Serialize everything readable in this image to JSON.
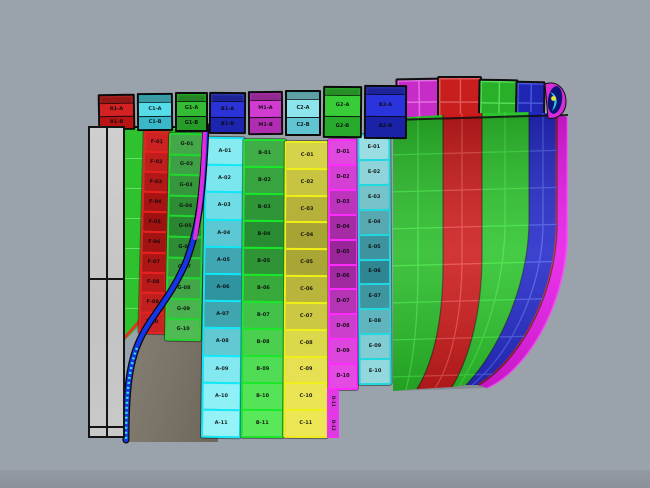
{
  "viewport": {
    "background": "#9aa2ab",
    "ground_shadow": "#8b9199"
  },
  "flat_panel": {
    "fill": "#cbcbcb",
    "border": "#141414"
  },
  "bow_panel": {
    "fill": "#2ec22e",
    "grid_line": "#96ff96",
    "edge_line": "#e03424"
  },
  "shadow_surface": {
    "fill": "#7a7367"
  },
  "stem_curve": {
    "outline": "#0a0a0a",
    "blue": "#1535e8",
    "magenta": "#e22ae2",
    "speckle": "#28e8e8"
  },
  "top_front_boxes": [
    {
      "id": "fb1",
      "color_name": "red",
      "frame": "#f03030",
      "cells": [
        "#d42222",
        "#b81414"
      ],
      "labels": [
        "R1-A",
        "R1-B"
      ]
    },
    {
      "id": "fb2",
      "color_name": "cyan",
      "frame": "#40e8f8",
      "cells": [
        "#55dce8",
        "#38b8c8"
      ],
      "labels": [
        "C1-A",
        "C1-B"
      ]
    },
    {
      "id": "fb3",
      "color_name": "green",
      "frame": "#30e830",
      "cells": [
        "#34bc34",
        "#259c28"
      ],
      "labels": [
        "G1-A",
        "G1-B"
      ]
    },
    {
      "id": "fb4",
      "color_name": "blue",
      "frame": "#4050f0",
      "cells": [
        "#2a32d8",
        "#1c24b0"
      ],
      "labels": [
        "B1-A",
        "B1-B"
      ]
    },
    {
      "id": "fb5",
      "color_name": "magenta",
      "frame": "#f040f0",
      "cells": [
        "#d03cd0",
        "#b02cb0"
      ],
      "labels": [
        "M1-A",
        "M1-B"
      ]
    },
    {
      "id": "fb6",
      "color_name": "pale-cyan",
      "frame": "#70e8f0",
      "cells": [
        "#8ce4ec",
        "#60c4d2"
      ],
      "labels": [
        "C2-A",
        "C2-B"
      ]
    },
    {
      "id": "fb7",
      "color_name": "green",
      "frame": "#38e838",
      "cells": [
        "#38cc38",
        "#28aa2c"
      ],
      "labels": [
        "G2-A",
        "G2-B"
      ]
    },
    {
      "id": "fb8",
      "color_name": "blue",
      "frame": "#3848e8",
      "cells": [
        "#2a34dc",
        "#1a22a8"
      ],
      "labels": [
        "B2-A",
        "B2-B"
      ]
    }
  ],
  "top_back_panels": [
    {
      "id": "bp1",
      "color_name": "magenta",
      "color": "#c82cc8",
      "grid_line": "#e070e0"
    },
    {
      "id": "bp2",
      "color_name": "red",
      "color": "#c81e1e",
      "grid_line": "#e05858"
    },
    {
      "id": "bp3",
      "color_name": "green",
      "color": "#28b028",
      "grid_line": "#58dc58"
    },
    {
      "id": "bp4",
      "color_name": "blue",
      "color": "#2026b4",
      "grid_line": "#4858dc"
    }
  ],
  "edge_detail": {
    "backing": "#d82cd8",
    "body": "#0c1478",
    "swoosh": "#28d0e0",
    "dot": "#f0e428"
  },
  "plate_columns": [
    {
      "id": "red",
      "border": "#e82020",
      "shades": [
        "#cc2222",
        "#c01d1d",
        "#b31818",
        "#a81414",
        "#a01212",
        "#a41313",
        "#ae1616",
        "#b81a1a",
        "#c21f1f",
        "#c92222"
      ],
      "labels": [
        "F-01",
        "F-02",
        "F-03",
        "F-04",
        "F-05",
        "F-06",
        "F-07",
        "F-08",
        "F-09",
        "F-10"
      ]
    },
    {
      "id": "green1",
      "border": "#20d830",
      "shades": [
        "#44a84a",
        "#3da044",
        "#35963c",
        "#2e8c34",
        "#2a8630",
        "#2e8c34",
        "#38983e",
        "#42a648",
        "#4ab24e",
        "#50ba54"
      ],
      "labels": [
        "G-01",
        "G-02",
        "G-03",
        "G-04",
        "G-05",
        "G-06",
        "G-07",
        "G-08",
        "G-09",
        "G-10"
      ]
    },
    {
      "id": "cyan",
      "border": "#10e8f8",
      "shades": [
        "#86ecf2",
        "#7ce6ee",
        "#6fdce6",
        "#5cc8d4",
        "#3fa6b2",
        "#2f93a0",
        "#3fa6b0",
        "#62c8d2",
        "#83e8f0",
        "#8ff0f5",
        "#95f2f6"
      ],
      "labels": [
        "A-01",
        "A-02",
        "A-03",
        "A-04",
        "A-05",
        "A-06",
        "A-07",
        "A-08",
        "A-09",
        "A-10",
        "A-11"
      ]
    },
    {
      "id": "green2",
      "border": "#18e828",
      "shades": [
        "#3fae46",
        "#38a440",
        "#2f9638",
        "#2a8c32",
        "#2e9435",
        "#38aa3c",
        "#42c248",
        "#4ad04e",
        "#50dc54",
        "#55e458",
        "#58e85a"
      ],
      "labels": [
        "B-01",
        "B-02",
        "B-03",
        "B-04",
        "B-05",
        "B-06",
        "B-07",
        "B-08",
        "B-09",
        "B-10",
        "B-11"
      ]
    },
    {
      "id": "yellow",
      "border": "#f0f018",
      "shades": [
        "#d6d24a",
        "#c8c442",
        "#b5b13a",
        "#a8a434",
        "#aaa636",
        "#b8b43c",
        "#ccc844",
        "#dcd84c",
        "#e6e052",
        "#ebe556",
        "#ede756"
      ],
      "labels": [
        "C-01",
        "C-02",
        "C-03",
        "C-04",
        "C-05",
        "C-06",
        "C-07",
        "C-08",
        "C-09",
        "C-10",
        "C-11"
      ]
    },
    {
      "id": "magenta",
      "border": "#ff2aff",
      "shades": [
        "#e048e0",
        "#d340d3",
        "#bb34bb",
        "#a52ca5",
        "#992699",
        "#a02aa0",
        "#b434b4",
        "#cc3ecc",
        "#dc46dc",
        "#e54ae5"
      ],
      "labels": [
        "D-01",
        "D-02",
        "D-03",
        "D-04",
        "D-05",
        "D-06",
        "D-07",
        "D-08",
        "D-09",
        "D-10"
      ]
    },
    {
      "id": "teal",
      "border": "#20d8e0",
      "shades": [
        "#9adde2",
        "#8ed4da",
        "#78c2ca",
        "#58a8b2",
        "#3f939e",
        "#2f8591",
        "#3f95a0",
        "#60b4bd",
        "#82ccd3",
        "#93d8dd"
      ],
      "labels": [
        "E-01",
        "E-02",
        "E-03",
        "E-04",
        "E-05",
        "E-06",
        "E-07",
        "E-08",
        "E-09",
        "E-10"
      ]
    }
  ],
  "side_strip": {
    "color": "#e23ae2",
    "border": "#ff2aff",
    "labels": [
      "D-11",
      "D-12"
    ]
  },
  "right_strakes": {
    "green_fill": "#28bc28",
    "green_grid": "#3ee23e",
    "red_fill": "#cc1a1a",
    "red_grid": "#e84848",
    "green2_fill": "#2cc42c",
    "blue_fill": "#2228c8",
    "blue_grid": "#4858e8",
    "edge_fill": "#e818e8",
    "edge_outline": "#ff40ff",
    "edge_red_line": "#d82020"
  }
}
